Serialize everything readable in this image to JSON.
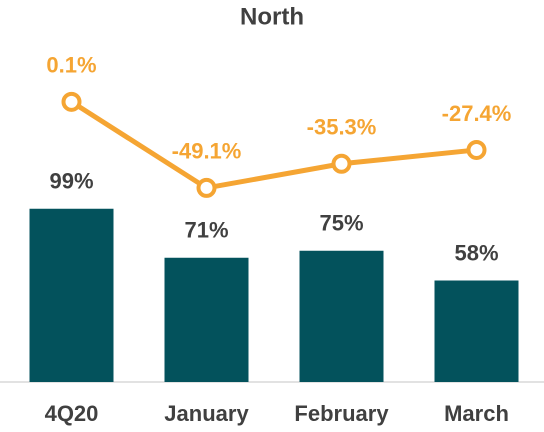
{
  "chart_data": {
    "type": "bar",
    "title": "North",
    "categories": [
      "4Q20",
      "January",
      "February",
      "March"
    ],
    "series": [
      {
        "type": "bar",
        "color": "#03525c",
        "values": [
          99,
          71,
          75,
          58
        ],
        "value_labels": [
          "99%",
          "71%",
          "75%",
          "58%"
        ]
      },
      {
        "type": "line",
        "axis": "y2",
        "color": "#f5a533",
        "values": [
          0.1,
          -49.1,
          -35.3,
          -27.4
        ],
        "value_labels": [
          "0.1%",
          "-49.1%",
          "-35.3%",
          "-27.4%"
        ]
      }
    ],
    "ylim": [
      0,
      200
    ],
    "y2lim": [
      -160,
      40
    ]
  }
}
